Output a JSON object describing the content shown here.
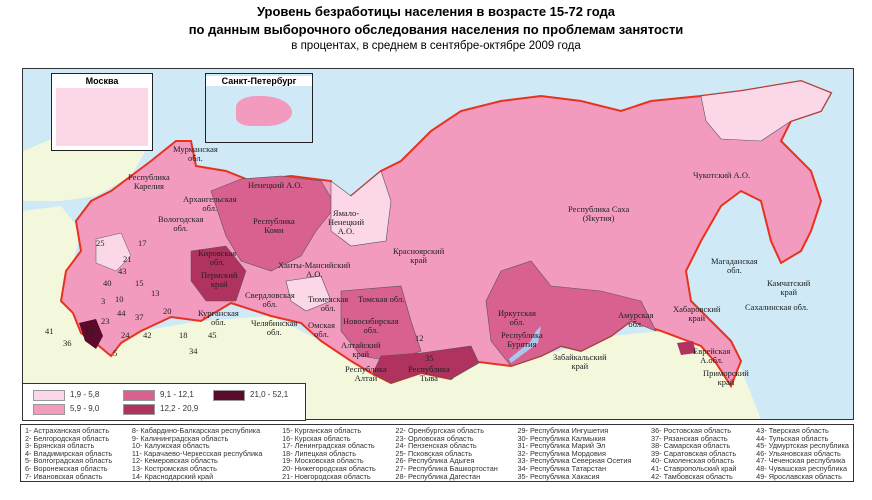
{
  "title": {
    "line1": "Уровень безработицы населения в возрасте 15-72 года",
    "line2": "по данным выборочного обследования населения по проблемам занятости",
    "line3": "в процентах, в среднем в сентябре-октябре 2009 года"
  },
  "insets": {
    "moscow": "Москва",
    "spb": "Санкт-Петербург"
  },
  "colors": {
    "sea": "#cfe9f6",
    "foreign_land": "#f3f8dc",
    "border": "#e8321e"
  },
  "legend": [
    {
      "range": "1,9 - 5,8",
      "color": "#fbd7e8"
    },
    {
      "range": "5,9 - 9,0",
      "color": "#f29bbf"
    },
    {
      "range": "9,1 - 12,1",
      "color": "#d8618f"
    },
    {
      "range": "12,2 - 20,9",
      "color": "#b0325f"
    },
    {
      "range": "21,0 - 52,1",
      "color": "#5a0a2a"
    }
  ],
  "map_labels": [
    "Мурманская\nобл.",
    "Республика\nКарелия",
    "Архангельская\nобл.",
    "Ненецкий А.О.",
    "Республика\nКоми",
    "Вологодская\nобл.",
    "Кировская\nобл.",
    "Пермский\nкрай",
    "Свердловская\nобл.",
    "Ханты-Мансийский\nА.О.",
    "Ямало-\nНенецкий\nА.О.",
    "Тюменская\nобл.",
    "Омская\nобл.",
    "Томская обл.",
    "Новосибирская\nобл.",
    "Алтайский\nкрай",
    "Республика\nАлтай",
    "Республика\nТыва",
    "Красноярский\nкрай",
    "Иркутская\nобл.",
    "Республика\nБурятия",
    "Забайкальский\nкрай",
    "Республика Саха\n(Якутия)",
    "Чукотский А.О.",
    "Магаданская\nобл.",
    "Камчатский\nкрай",
    "Сахалинская обл.",
    "Амурская\nобл.",
    "Хабаровский\nкрай",
    "Еврейская\nА.обл.",
    "Приморский\nкрай",
    "Челябинская\nобл.",
    "Курганская\nобл.",
    "25",
    "21",
    "17",
    "43",
    "40",
    "15",
    "13",
    "3",
    "10",
    "44",
    "37",
    "23",
    "16",
    "20",
    "18",
    "45",
    "24",
    "42",
    "12",
    "35",
    "5",
    "41",
    "36",
    "34"
  ],
  "region_list": [
    [
      "1- Астраханская область",
      "2- Белгородская область",
      "3- Брянская область",
      "4- Владимирская область",
      "5- Волгоградская область",
      "6- Воронежская область",
      "7- Ивановская область"
    ],
    [
      "8- Кабардино-Балкарская республика",
      "9- Калининградская область",
      "10- Калужская область",
      "11- Карачаево-Черкесская республика",
      "12- Кемеровская область",
      "13- Костромская область",
      "14- Краснодарский край"
    ],
    [
      "15- Курганская область",
      "16- Курская область",
      "17- Ленинградская область",
      "18- Липецкая область",
      "19- Московская область",
      "20- Нижегородская область",
      "21- Новгородская область"
    ],
    [
      "22- Оренбургская область",
      "23- Орловская область",
      "24- Пензенская область",
      "25- Псковская область",
      "26- Республика Адыгея",
      "27- Республика Башкортостан",
      "28- Республика Дагестан"
    ],
    [
      "29- Республика Ингушетия",
      "30- Республика Калмыкия",
      "31- Республика Марий Эл",
      "32- Республика Мордовия",
      "33- Республика Северная Осетия",
      "34- Республика Татарстан",
      "35- Республика Хакасия"
    ],
    [
      "36- Ростовская область",
      "37- Рязанская область",
      "38- Самарская область",
      "39- Саратовская область",
      "40- Смоленская область",
      "41- Ставропольский край",
      "42- Тамбовская область"
    ],
    [
      "43- Тверская область",
      "44- Тульская область",
      "45- Удмуртская республика",
      "46- Ульяновская область",
      "47- Чеченская республика",
      "48- Чувашская республика",
      "49- Ярославская область"
    ]
  ]
}
